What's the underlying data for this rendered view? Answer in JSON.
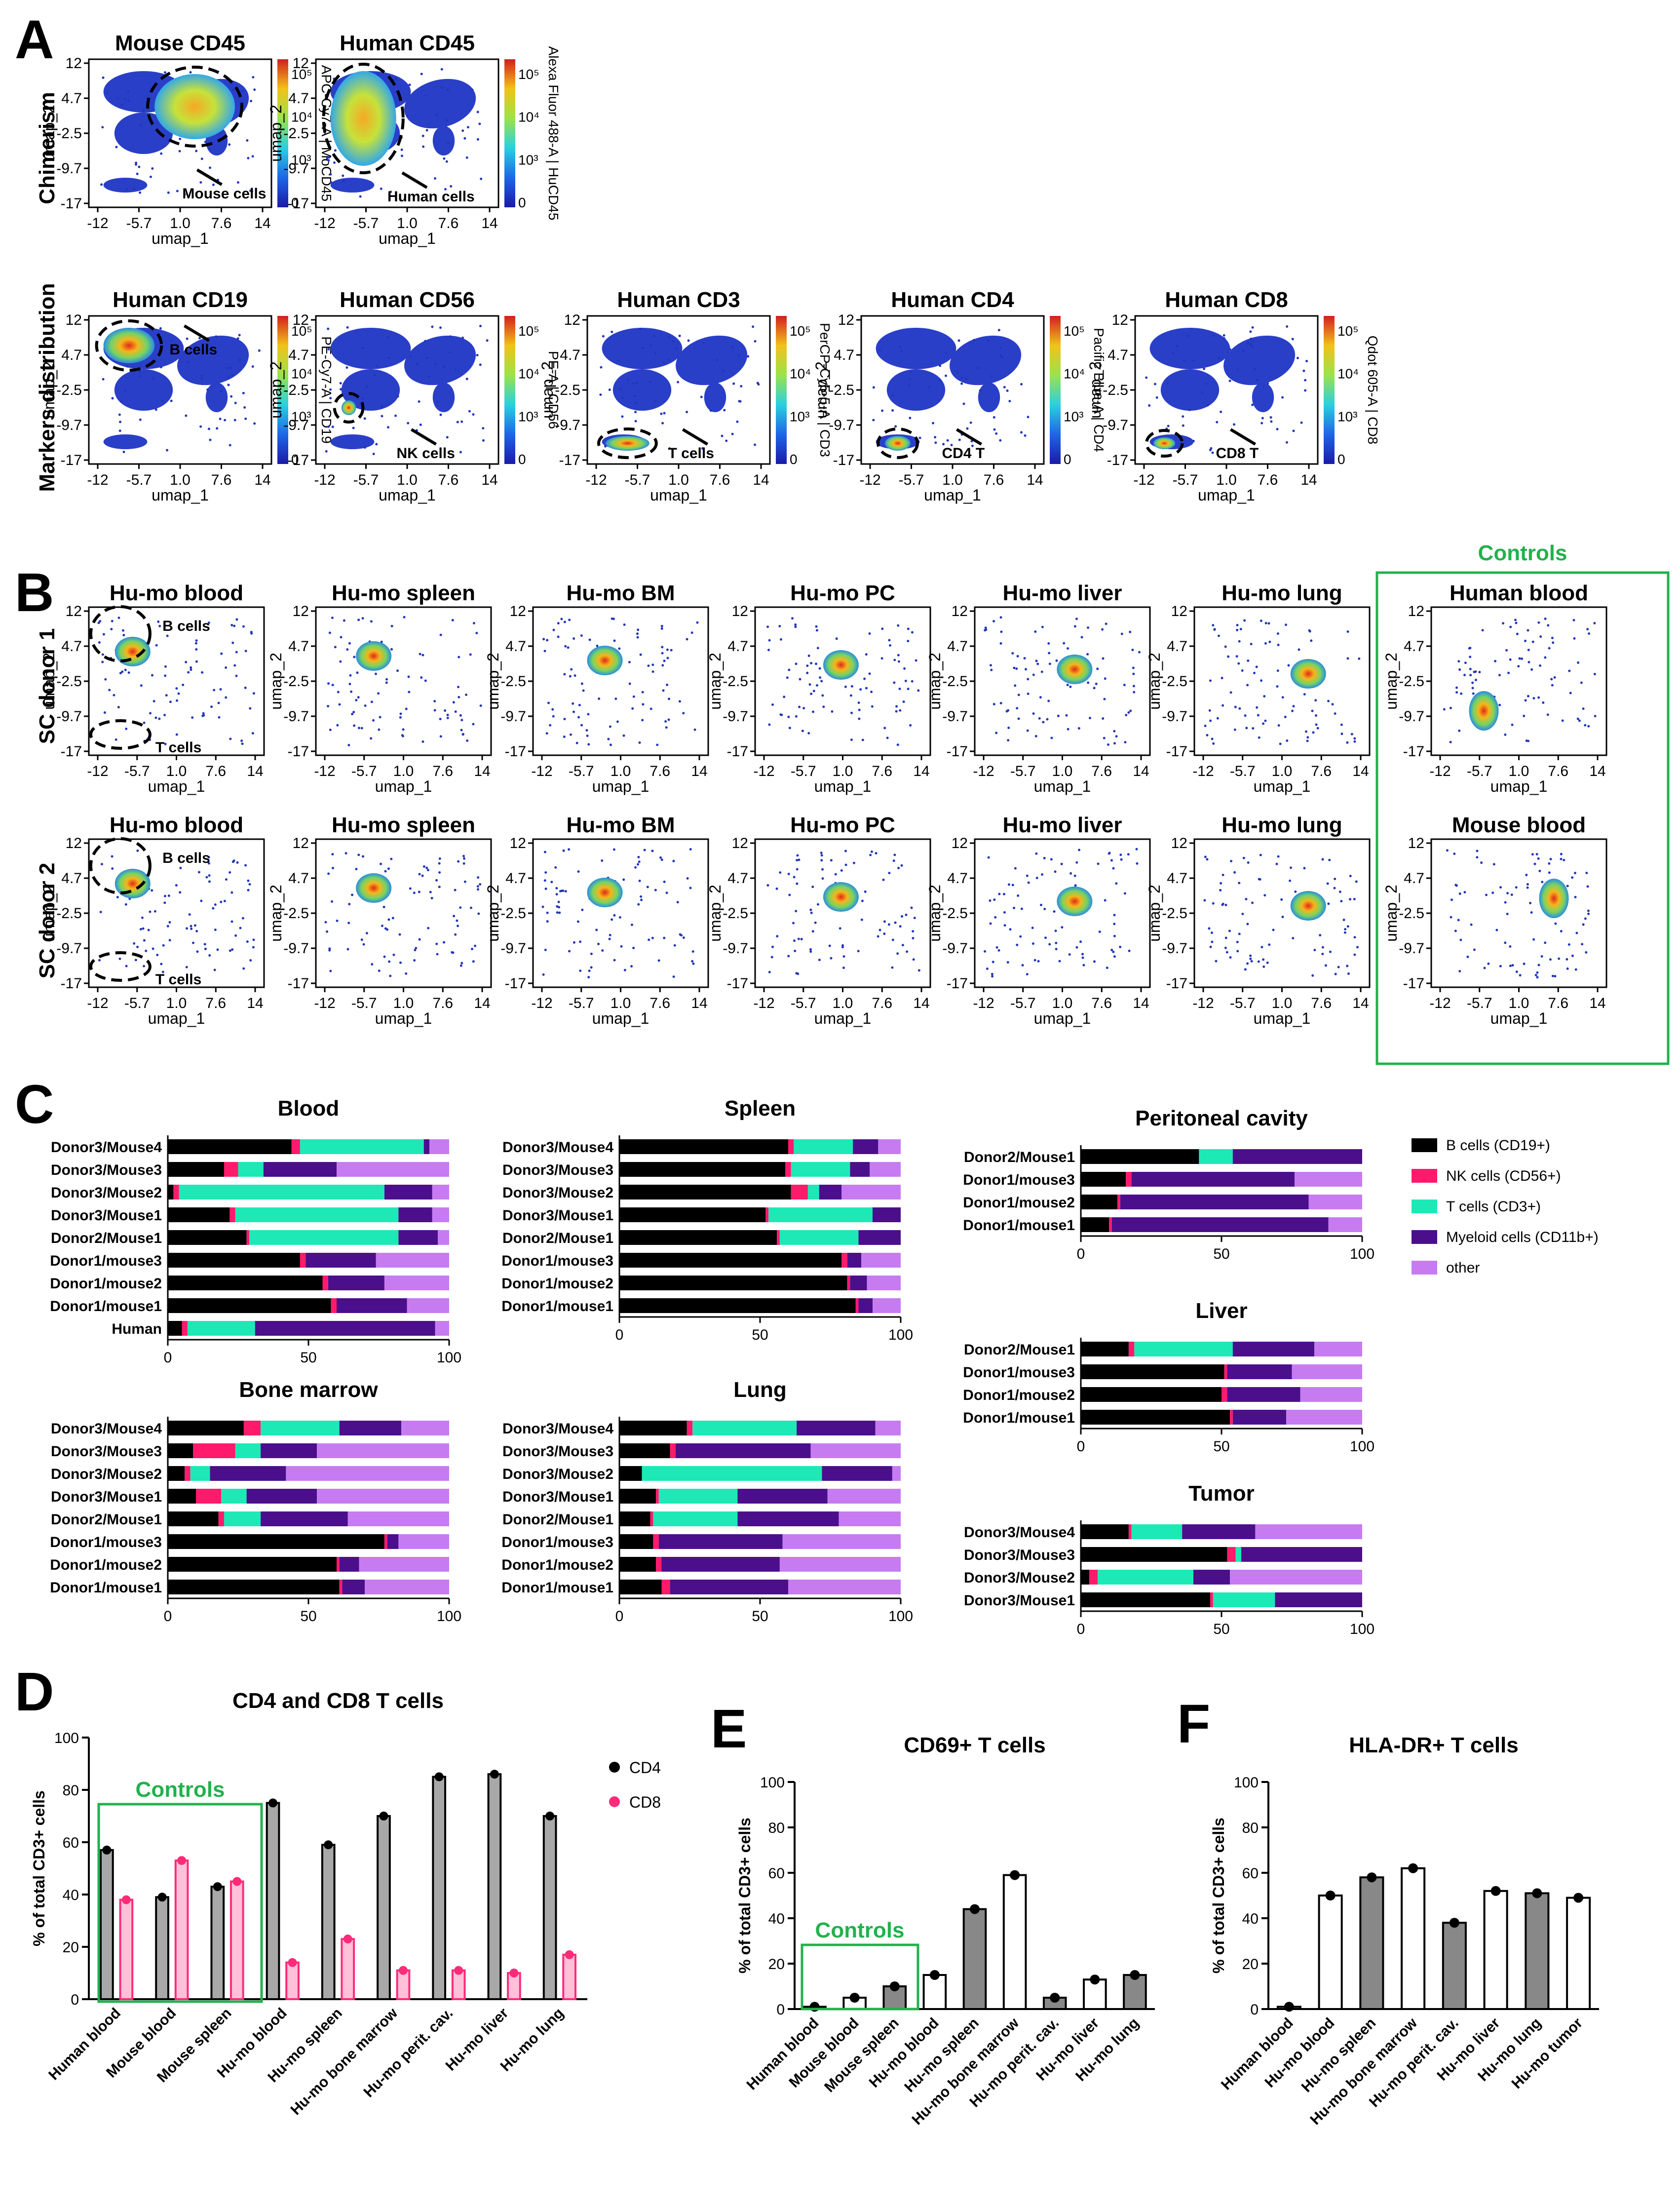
{
  "panel_letters": [
    "A",
    "B",
    "C",
    "D",
    "E",
    "F"
  ],
  "panel_a": {
    "row_labels": [
      "Chimerism",
      "Markers distribution"
    ],
    "axis_x_label": "umap_1",
    "axis_y_label": "umap_2",
    "x_ticks": [
      "-12",
      "-5.7",
      "1.0",
      "7.6",
      "14"
    ],
    "y_ticks": [
      "12",
      "4.7",
      "-2.5",
      "-9.7",
      "-17"
    ],
    "colorbar_ticks": [
      "10⁵",
      "10⁴",
      "10³",
      "0"
    ],
    "plots": [
      {
        "title": "Mouse CD45",
        "colorbar_label": "APC-Cy7-A | MoCD45",
        "annotation": "Mouse cells"
      },
      {
        "title": "Human CD45",
        "colorbar_label": "Alexa Fluor 488-A | HuCD45",
        "annotation": "Human cells"
      },
      {
        "title": "Human CD19",
        "colorbar_label": "PE-Cy7-A | CD19",
        "annotation": "B cells"
      },
      {
        "title": "Human CD56",
        "colorbar_label": "PE-A | CD56",
        "annotation": "NK cells"
      },
      {
        "title": "Human CD3",
        "colorbar_label": "PerCP-Cy5-5-A | CD3",
        "annotation": "T cells"
      },
      {
        "title": "Human CD4",
        "colorbar_label": "Pacific Blue-A | CD4",
        "annotation": "CD4 T"
      },
      {
        "title": "Human CD8",
        "colorbar_label": "Qdot 605-A | CD8",
        "annotation": "CD8 T"
      }
    ]
  },
  "panel_b": {
    "row_labels": [
      "SC donor 1",
      "SC donor 2"
    ],
    "controls_label": "Controls",
    "annotations": [
      "B cells",
      "T cells"
    ],
    "titles": [
      "Hu-mo blood",
      "Hu-mo spleen",
      "Hu-mo BM",
      "Hu-mo PC",
      "Hu-mo liver",
      "Hu-mo lung"
    ],
    "control_titles": [
      "Human blood",
      "Mouse blood"
    ]
  },
  "panel_c": {
    "legend": [
      "B cells (CD19+)",
      "NK cells (CD56+)",
      "T cells (CD3+)",
      "Myeloid cells (CD11b+)",
      "other"
    ],
    "colors": {
      "B": "#000000",
      "NK": "#ff1a6c",
      "T": "#1de9b6",
      "Myeloid": "#4b0f8c",
      "other": "#c67cf0"
    },
    "x_ticks": [
      "0",
      "50",
      "100"
    ]
  },
  "chart_data": [
    {
      "type": "bar",
      "title": "Blood",
      "orientation": "horizontal-stacked",
      "categories": [
        "Donor3/Mouse4",
        "Donor3/Mouse3",
        "Donor3/Mouse2",
        "Donor3/Mouse1",
        "Donor2/Mouse1",
        "Donor1/mouse3",
        "Donor1/mouse2",
        "Donor1/mouse1",
        "Human"
      ],
      "series": [
        {
          "name": "B cells (CD19+)",
          "values": [
            44,
            20,
            2,
            22,
            28,
            47,
            55,
            58,
            5
          ]
        },
        {
          "name": "NK cells (CD56+)",
          "values": [
            3,
            5,
            2,
            2,
            1,
            2,
            2,
            2,
            2
          ]
        },
        {
          "name": "T cells (CD3+)",
          "values": [
            44,
            9,
            73,
            58,
            53,
            0,
            0,
            0,
            24
          ]
        },
        {
          "name": "Myeloid cells (CD11b+)",
          "values": [
            2,
            26,
            17,
            12,
            14,
            25,
            20,
            25,
            64
          ]
        },
        {
          "name": "other",
          "values": [
            7,
            40,
            6,
            6,
            4,
            26,
            23,
            15,
            5
          ]
        }
      ],
      "xlim": [
        0,
        100
      ]
    },
    {
      "type": "bar",
      "title": "Spleen",
      "orientation": "horizontal-stacked",
      "categories": [
        "Donor3/Mouse4",
        "Donor3/Mouse3",
        "Donor3/Mouse2",
        "Donor3/Mouse1",
        "Donor2/Mouse1",
        "Donor1/mouse3",
        "Donor1/mouse2",
        "Donor1/mouse1"
      ],
      "series": [
        {
          "name": "B cells (CD19+)",
          "values": [
            60,
            59,
            61,
            52,
            56,
            79,
            81,
            84
          ]
        },
        {
          "name": "NK cells (CD56+)",
          "values": [
            2,
            2,
            6,
            1,
            1,
            2,
            1,
            1
          ]
        },
        {
          "name": "T cells (CD3+)",
          "values": [
            21,
            21,
            4,
            37,
            28,
            0,
            0,
            0
          ]
        },
        {
          "name": "Myeloid cells (CD11b+)",
          "values": [
            9,
            7,
            8,
            10,
            15,
            5,
            6,
            5
          ]
        },
        {
          "name": "other",
          "values": [
            8,
            11,
            21,
            0,
            0,
            14,
            12,
            10
          ]
        }
      ],
      "xlim": [
        0,
        100
      ]
    },
    {
      "type": "bar",
      "title": "Peritoneal cavity",
      "orientation": "horizontal-stacked",
      "categories": [
        "Donor2/Mouse1",
        "Donor1/mouse3",
        "Donor1/mouse2",
        "Donor1/mouse1"
      ],
      "series": [
        {
          "name": "B cells (CD19+)",
          "values": [
            42,
            16,
            13,
            10
          ]
        },
        {
          "name": "NK cells (CD56+)",
          "values": [
            0,
            2,
            1,
            1
          ]
        },
        {
          "name": "T cells (CD3+)",
          "values": [
            12,
            0,
            0,
            0
          ]
        },
        {
          "name": "Myeloid cells (CD11b+)",
          "values": [
            46,
            58,
            67,
            77
          ]
        },
        {
          "name": "other",
          "values": [
            0,
            24,
            19,
            12
          ]
        }
      ],
      "xlim": [
        0,
        100
      ]
    },
    {
      "type": "bar",
      "title": "Liver",
      "orientation": "horizontal-stacked",
      "categories": [
        "Donor2/Mouse1",
        "Donor1/mouse3",
        "Donor1/mouse2",
        "Donor1/mouse1"
      ],
      "series": [
        {
          "name": "B cells (CD19+)",
          "values": [
            17,
            51,
            50,
            53
          ]
        },
        {
          "name": "NK cells (CD56+)",
          "values": [
            2,
            1,
            2,
            1
          ]
        },
        {
          "name": "T cells (CD3+)",
          "values": [
            35,
            0,
            0,
            0
          ]
        },
        {
          "name": "Myeloid cells (CD11b+)",
          "values": [
            29,
            23,
            26,
            19
          ]
        },
        {
          "name": "other",
          "values": [
            17,
            25,
            22,
            27
          ]
        }
      ],
      "xlim": [
        0,
        100
      ]
    },
    {
      "type": "bar",
      "title": "Bone marrow",
      "orientation": "horizontal-stacked",
      "categories": [
        "Donor3/Mouse4",
        "Donor3/Mouse3",
        "Donor3/Mouse2",
        "Donor3/Mouse1",
        "Donor2/Mouse1",
        "Donor1/mouse3",
        "Donor1/mouse2",
        "Donor1/mouse1"
      ],
      "series": [
        {
          "name": "B cells (CD19+)",
          "values": [
            27,
            9,
            6,
            10,
            18,
            77,
            60,
            61
          ]
        },
        {
          "name": "NK cells (CD56+)",
          "values": [
            6,
            15,
            2,
            9,
            2,
            1,
            1,
            1
          ]
        },
        {
          "name": "T cells (CD3+)",
          "values": [
            28,
            9,
            7,
            9,
            13,
            0,
            0,
            0
          ]
        },
        {
          "name": "Myeloid cells (CD11b+)",
          "values": [
            22,
            20,
            27,
            25,
            31,
            4,
            7,
            8
          ]
        },
        {
          "name": "other",
          "values": [
            17,
            47,
            58,
            47,
            36,
            18,
            32,
            30
          ]
        }
      ],
      "xlim": [
        0,
        100
      ]
    },
    {
      "type": "bar",
      "title": "Lung",
      "orientation": "horizontal-stacked",
      "categories": [
        "Donor3/Mouse4",
        "Donor3/Mouse3",
        "Donor3/Mouse2",
        "Donor3/Mouse1",
        "Donor2/Mouse1",
        "Donor1/mouse3",
        "Donor1/mouse2",
        "Donor1/mouse1"
      ],
      "series": [
        {
          "name": "B cells (CD19+)",
          "values": [
            24,
            18,
            8,
            13,
            11,
            12,
            13,
            15
          ]
        },
        {
          "name": "NK cells (CD56+)",
          "values": [
            2,
            2,
            0,
            1,
            1,
            2,
            2,
            3
          ]
        },
        {
          "name": "T cells (CD3+)",
          "values": [
            37,
            0,
            64,
            28,
            30,
            0,
            0,
            0
          ]
        },
        {
          "name": "Myeloid cells (CD11b+)",
          "values": [
            28,
            48,
            25,
            32,
            36,
            44,
            42,
            42
          ]
        },
        {
          "name": "other",
          "values": [
            9,
            32,
            3,
            26,
            22,
            42,
            43,
            40
          ]
        }
      ],
      "xlim": [
        0,
        100
      ]
    },
    {
      "type": "bar",
      "title": "Tumor",
      "orientation": "horizontal-stacked",
      "categories": [
        "Donor3/Mouse4",
        "Donor3/Mouse3",
        "Donor3/Mouse2",
        "Donor3/Mouse1"
      ],
      "series": [
        {
          "name": "B cells (CD19+)",
          "values": [
            17,
            52,
            3,
            46
          ]
        },
        {
          "name": "NK cells (CD56+)",
          "values": [
            1,
            3,
            3,
            1
          ]
        },
        {
          "name": "T cells (CD3+)",
          "values": [
            18,
            2,
            34,
            22
          ]
        },
        {
          "name": "Myeloid cells (CD11b+)",
          "values": [
            26,
            43,
            13,
            31
          ]
        },
        {
          "name": "other",
          "values": [
            38,
            0,
            47,
            0
          ]
        }
      ],
      "xlim": [
        0,
        100
      ]
    },
    {
      "type": "bar",
      "title": "CD4 and CD8 T cells",
      "ylabel": "% of total CD3+ cells",
      "ylim": [
        0,
        100
      ],
      "categories": [
        "Human blood",
        "Mouse blood",
        "Mouse spleen",
        "Hu-mo blood",
        "Hu-mo spleen",
        "Hu-mo bone marrow",
        "Hu-mo perit. cav.",
        "Hu-mo liver",
        "Hu-mo lung"
      ],
      "series": [
        {
          "name": "CD4",
          "values": [
            57,
            39,
            43,
            75,
            59,
            70,
            85,
            86,
            70
          ]
        },
        {
          "name": "CD8",
          "values": [
            38,
            53,
            45,
            14,
            23,
            11,
            11,
            10,
            17
          ]
        }
      ],
      "controls_label": "Controls"
    },
    {
      "type": "bar",
      "title": "CD69+ T cells",
      "ylabel": "% of total CD3+ cells",
      "ylim": [
        0,
        100
      ],
      "categories": [
        "Human blood",
        "Mouse blood",
        "Mouse spleen",
        "Hu-mo blood",
        "Hu-mo spleen",
        "Hu-mo bone marrow",
        "Hu-mo perit. cav.",
        "Hu-mo liver",
        "Hu-mo lung"
      ],
      "values": [
        1,
        5,
        10,
        15,
        44,
        59,
        5,
        13,
        15
      ],
      "controls_label": "Controls"
    },
    {
      "type": "bar",
      "title": "HLA-DR+ T cells",
      "ylabel": "% of total CD3+ cells",
      "ylim": [
        0,
        100
      ],
      "categories": [
        "Human blood",
        "Hu-mo blood",
        "Hu-mo spleen",
        "Hu-mo bone marrow",
        "Hu-mo perit. cav.",
        "Hu-mo liver",
        "Hu-mo lung",
        "Hu-mo tumor"
      ],
      "values": [
        1,
        50,
        58,
        62,
        38,
        52,
        51,
        49
      ]
    }
  ],
  "y_ticks_100": [
    "0",
    "20",
    "40",
    "60",
    "80",
    "100"
  ]
}
